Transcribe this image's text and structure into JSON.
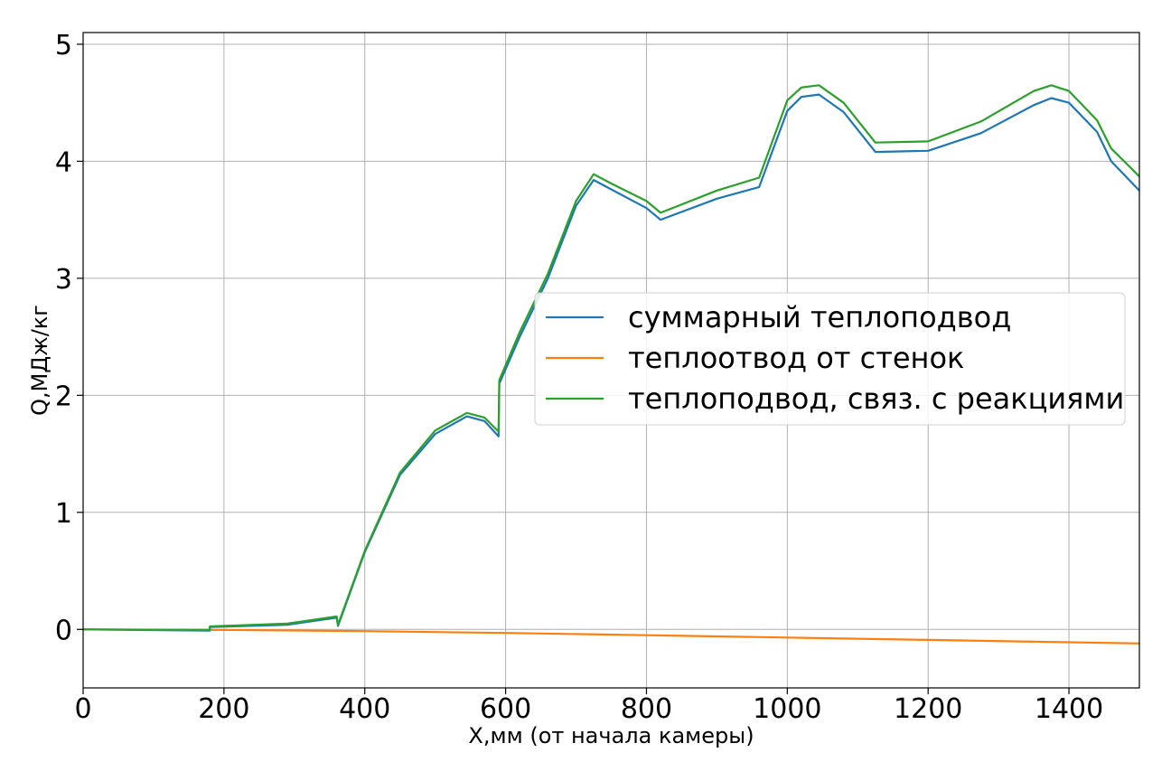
{
  "chart_data": {
    "type": "line",
    "xlabel": "X,мм (от начала камеры)",
    "ylabel": "Q,МДж/кг",
    "xlim": [
      0,
      1500
    ],
    "ylim": [
      -0.5,
      5.1
    ],
    "xticks": [
      0,
      200,
      400,
      600,
      800,
      1000,
      1200,
      1400
    ],
    "yticks": [
      0,
      1,
      2,
      3,
      4,
      5
    ],
    "grid": true,
    "legend_position": "center-right",
    "series": [
      {
        "name": "суммарный теплоподвод",
        "color": "#1f77b4",
        "x": [
          0,
          180,
          180,
          290,
          360,
          362,
          400,
          450,
          500,
          545,
          570,
          590,
          591,
          620,
          660,
          700,
          725,
          750,
          800,
          820,
          900,
          960,
          1000,
          1020,
          1045,
          1080,
          1125,
          1200,
          1275,
          1350,
          1375,
          1400,
          1440,
          1460,
          1500
        ],
        "values": [
          0.0,
          -0.01,
          0.02,
          0.04,
          0.1,
          0.03,
          0.66,
          1.32,
          1.67,
          1.82,
          1.78,
          1.65,
          2.1,
          2.5,
          3.0,
          3.62,
          3.84,
          3.76,
          3.6,
          3.5,
          3.68,
          3.78,
          4.43,
          4.55,
          4.57,
          4.42,
          4.08,
          4.09,
          4.24,
          4.48,
          4.54,
          4.5,
          4.25,
          4.0,
          3.75
        ]
      },
      {
        "name": "теплоотвод от стенок",
        "color": "#ff7f0e",
        "x": [
          0,
          200,
          400,
          600,
          800,
          1000,
          1200,
          1400,
          1500
        ],
        "values": [
          0.0,
          -0.005,
          -0.015,
          -0.03,
          -0.05,
          -0.07,
          -0.09,
          -0.11,
          -0.12
        ]
      },
      {
        "name": "теплоподвод, связ. с реакциями",
        "color": "#2ca02c",
        "x": [
          0,
          180,
          180,
          290,
          360,
          362,
          400,
          450,
          500,
          545,
          570,
          590,
          591,
          620,
          660,
          700,
          725,
          750,
          800,
          820,
          900,
          960,
          1000,
          1020,
          1045,
          1080,
          1125,
          1200,
          1275,
          1350,
          1375,
          1400,
          1440,
          1460,
          1500
        ],
        "values": [
          0.0,
          -0.005,
          0.025,
          0.05,
          0.11,
          0.04,
          0.67,
          1.34,
          1.7,
          1.85,
          1.81,
          1.69,
          2.13,
          2.54,
          3.04,
          3.66,
          3.89,
          3.81,
          3.66,
          3.56,
          3.75,
          3.86,
          4.52,
          4.63,
          4.65,
          4.5,
          4.16,
          4.17,
          4.34,
          4.6,
          4.65,
          4.6,
          4.35,
          4.11,
          3.87
        ]
      }
    ]
  }
}
